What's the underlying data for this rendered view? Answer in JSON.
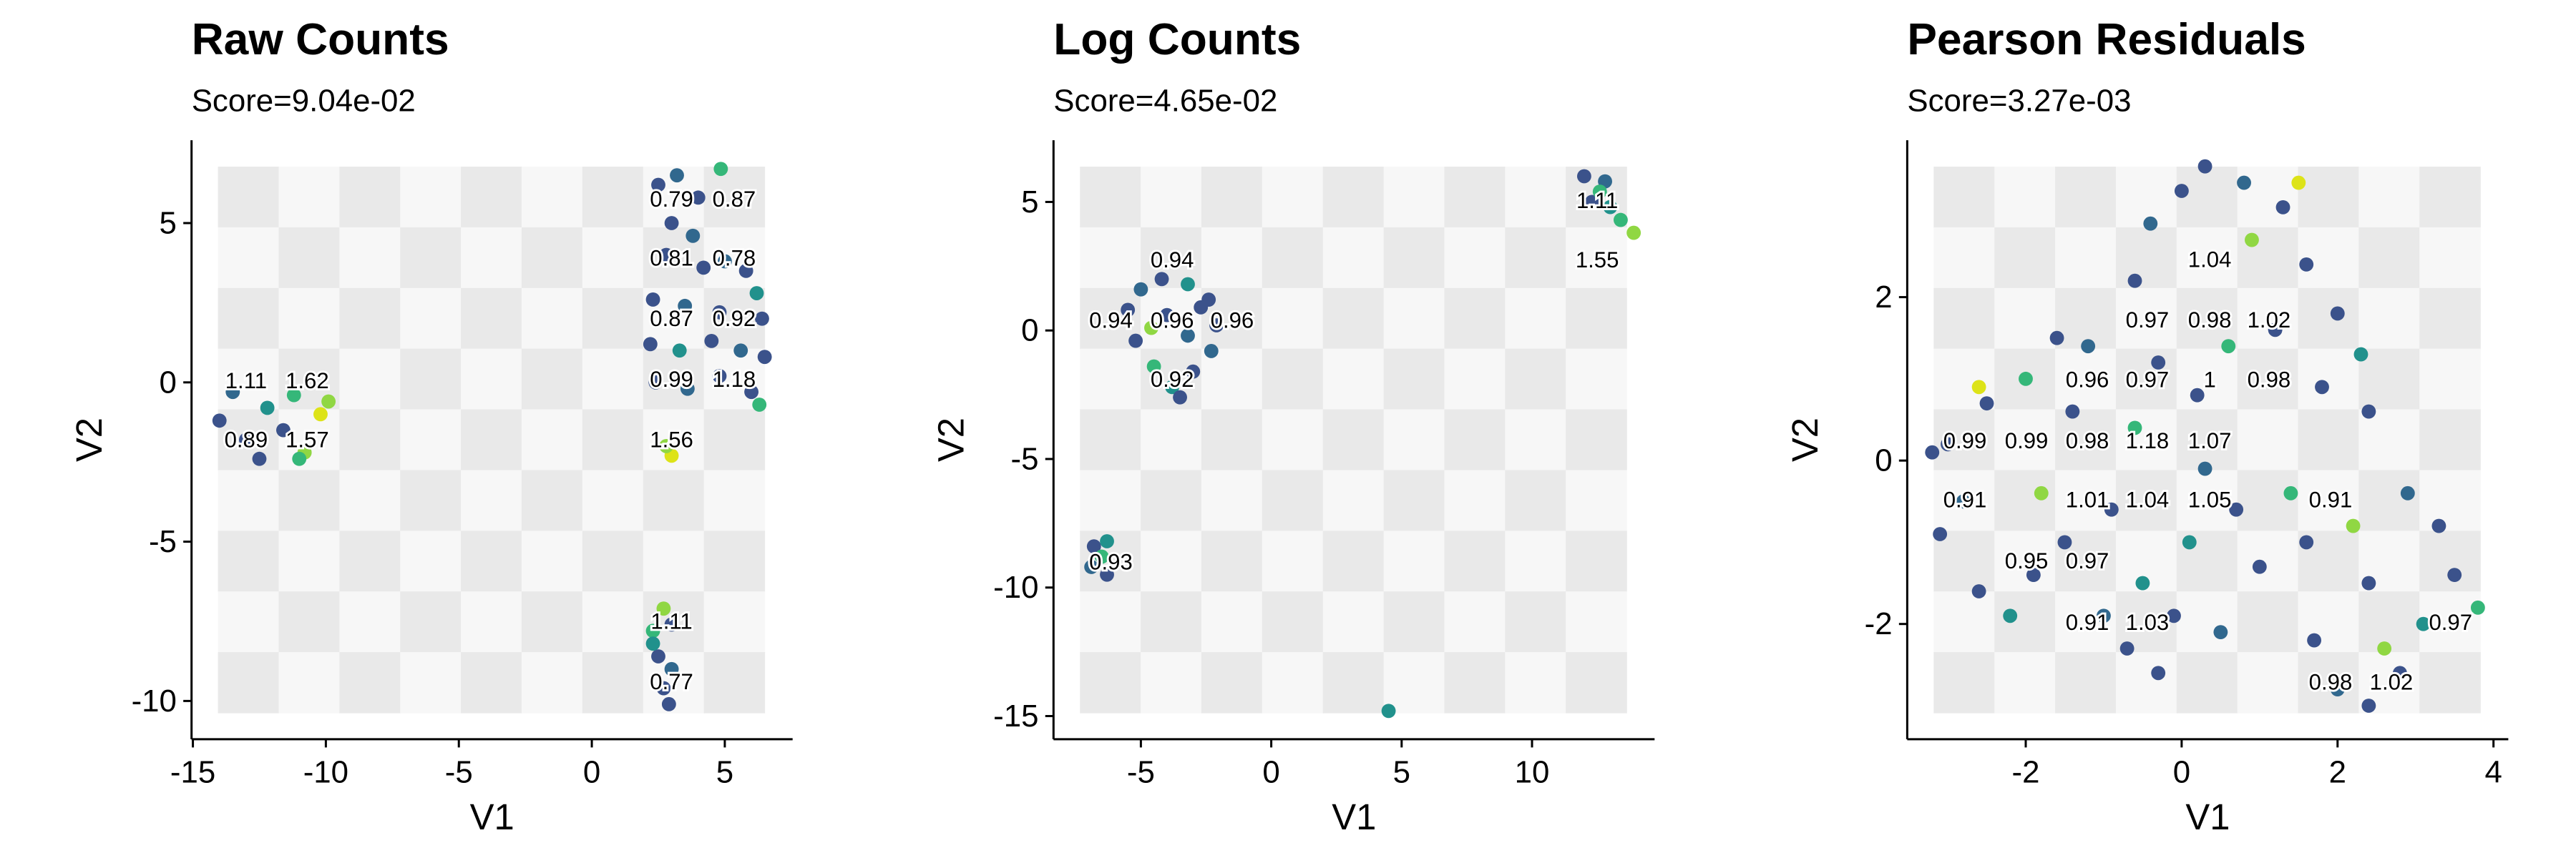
{
  "chart_data": [
    {
      "type": "scatter",
      "title": "Raw Counts",
      "subtitle": "Score=9.04e-02",
      "x_label": "V1",
      "y_label": "V2",
      "xlim": [
        -15.05,
        7.55
      ],
      "ylim": [
        -11.2,
        7.6
      ],
      "xticks": [
        -15,
        -10,
        -5,
        0,
        5
      ],
      "yticks": [
        -10,
        -5,
        0,
        5
      ],
      "x": [
        2.5,
        3.2,
        4.0,
        3.0,
        3.8,
        2.8,
        4.2,
        5.0,
        5.8,
        6.2,
        2.3,
        3.5,
        4.8,
        6.4,
        2.2,
        3.3,
        4.5,
        5.6,
        6.5,
        2.4,
        3.6,
        4.8,
        6.0,
        6.3,
        4.85,
        3.0,
        2.8,
        -14,
        -13.5,
        -13,
        -12.5,
        -12.2,
        -11.6,
        -11.2,
        -10.8,
        -10.2,
        -9.9,
        -11,
        2.3,
        2.7,
        3.0,
        2.5,
        3.0,
        2.7,
        2.9,
        2.3
      ],
      "y": [
        6.2,
        6.5,
        5.8,
        5.0,
        4.6,
        4.0,
        3.6,
        3.8,
        3.5,
        2.8,
        2.6,
        2.4,
        2.2,
        2.0,
        1.2,
        1.0,
        1.3,
        1.0,
        0.8,
        0.0,
        -0.2,
        0.2,
        -0.3,
        -0.7,
        6.7,
        -2.3,
        -2.0,
        -1.2,
        -0.3,
        -1.8,
        -2.4,
        -0.8,
        -1.5,
        -0.4,
        -2.2,
        -1.0,
        -0.6,
        -2.4,
        -7.8,
        -7.1,
        -7.6,
        -8.6,
        -9.0,
        -9.6,
        -10.1,
        -8.2
      ],
      "colors": [
        "#3b528b",
        "#31688e",
        "#3b528b",
        "#3b528b",
        "#31688e",
        "#3b528b",
        "#3b528b",
        "#31688e",
        "#3b528b",
        "#21918c",
        "#3b528b",
        "#31688e",
        "#3b528b",
        "#3b528b",
        "#3b528b",
        "#21918c",
        "#3b528b",
        "#31688e",
        "#3b528b",
        "#3b528b",
        "#31688e",
        "#3b528b",
        "#3b528b",
        "#35b779",
        "#35b779",
        "#dde318",
        "#90d743",
        "#3b528b",
        "#31688e",
        "#3b528b",
        "#3b528b",
        "#21918c",
        "#3b528b",
        "#35b779",
        "#90d743",
        "#dde318",
        "#90d743",
        "#35b779",
        "#35b779",
        "#90d743",
        "#3b528b",
        "#3b528b",
        "#31688e",
        "#3b528b",
        "#3b528b",
        "#21918c"
      ],
      "annotations": [
        {
          "text": "0.79",
          "x": 3.0,
          "y": 5.75
        },
        {
          "text": "0.87",
          "x": 5.35,
          "y": 5.75
        },
        {
          "text": "0.81",
          "x": 3.0,
          "y": 3.9
        },
        {
          "text": "0.78",
          "x": 5.35,
          "y": 3.9
        },
        {
          "text": "0.87",
          "x": 3.0,
          "y": 2.0
        },
        {
          "text": "0.92",
          "x": 5.35,
          "y": 2.0
        },
        {
          "text": "0.99",
          "x": 3.0,
          "y": 0.1
        },
        {
          "text": "1.18",
          "x": 5.35,
          "y": 0.1
        },
        {
          "text": "1.11",
          "x": -13.0,
          "y": 0.05
        },
        {
          "text": "1.62",
          "x": -10.7,
          "y": 0.05
        },
        {
          "text": "0.89",
          "x": -13.0,
          "y": -1.8
        },
        {
          "text": "1.57",
          "x": -10.7,
          "y": -1.8
        },
        {
          "text": "1.56",
          "x": 3.0,
          "y": -1.8
        },
        {
          "text": "1.11",
          "x": 3.0,
          "y": -7.5
        },
        {
          "text": "0.77",
          "x": 3.0,
          "y": -9.4
        }
      ]
    },
    {
      "type": "scatter",
      "title": "Log Counts",
      "subtitle": "Score=4.65e-02",
      "x_label": "V1",
      "y_label": "V2",
      "xlim": [
        -8.35,
        14.7
      ],
      "ylim": [
        -15.9,
        7.4
      ],
      "xticks": [
        -5,
        0,
        5,
        10
      ],
      "yticks": [
        -15,
        -10,
        -5,
        0,
        5
      ],
      "x": [
        -5.5,
        -5,
        -4.2,
        -3.2,
        -2.4,
        -2.1,
        -2.3,
        -3.0,
        -3.8,
        -4.5,
        -5.2,
        -4.0,
        -3.2,
        -4.6,
        -3.5,
        -2.7,
        -6.8,
        -6.3,
        -6.9,
        -6.3,
        -6.5,
        12.0,
        12.8,
        12.3,
        13.0,
        13.4,
        13.9,
        12.6,
        4.5
      ],
      "y": [
        0.8,
        1.6,
        2.0,
        1.8,
        1.2,
        0.2,
        -0.8,
        -1.6,
        -2.2,
        -1.4,
        -0.4,
        0.6,
        -0.2,
        0.1,
        -2.6,
        0.9,
        -8.4,
        -8.2,
        -9.2,
        -9.5,
        -8.8,
        6.0,
        5.8,
        5.0,
        4.8,
        4.3,
        3.8,
        5.4,
        -14.8
      ],
      "colors": [
        "#3b528b",
        "#31688e",
        "#3b528b",
        "#21918c",
        "#3b528b",
        "#3b528b",
        "#31688e",
        "#3b528b",
        "#21918c",
        "#35b779",
        "#3b528b",
        "#3b528b",
        "#31688e",
        "#90d743",
        "#3b528b",
        "#3b528b",
        "#3b528b",
        "#21918c",
        "#31688e",
        "#3b528b",
        "#35b779",
        "#3b528b",
        "#31688e",
        "#3b528b",
        "#21918c",
        "#35b779",
        "#90d743",
        "#35b779",
        "#21918c"
      ],
      "annotations": [
        {
          "text": "1.11",
          "x": 12.5,
          "y": 5.05
        },
        {
          "text": "1.55",
          "x": 12.5,
          "y": 2.75
        },
        {
          "text": "0.94",
          "x": -3.8,
          "y": 2.75
        },
        {
          "text": "0.94",
          "x": -6.15,
          "y": 0.4
        },
        {
          "text": "0.96",
          "x": -3.8,
          "y": 0.4
        },
        {
          "text": "0.96",
          "x": -1.5,
          "y": 0.4
        },
        {
          "text": "0.92",
          "x": -3.8,
          "y": -1.9
        },
        {
          "text": "0.93",
          "x": -6.15,
          "y": -9.0
        }
      ]
    },
    {
      "type": "scatter",
      "title": "Pearson Residuals",
      "subtitle": "Score=3.27e-03",
      "x_label": "V1",
      "y_label": "V2",
      "xlim": [
        -3.52,
        4.19
      ],
      "ylim": [
        -3.41,
        3.92
      ],
      "xticks": [
        -2,
        0,
        2,
        4
      ],
      "yticks": [
        -2,
        0,
        2
      ],
      "x": [
        -3.0,
        -2.8,
        -3.1,
        -2.6,
        -2.2,
        -2.5,
        -2.0,
        -1.6,
        -1.2,
        -1.4,
        -1.8,
        -1.5,
        -1.9,
        -1.0,
        -0.7,
        -0.3,
        -0.5,
        -0.9,
        -0.6,
        -0.3,
        -0.6,
        -0.4,
        0.0,
        0.3,
        0.8,
        1.3,
        0.9,
        1.6,
        2.0,
        2.3,
        2.4,
        1.8,
        1.2,
        0.6,
        0.2,
        0.3,
        0.7,
        0.1,
        -0.1,
        0.5,
        1.0,
        1.4,
        1.6,
        1.7,
        2.0,
        2.4,
        2.8,
        3.1,
        3.5,
        3.8,
        3.3,
        2.9,
        2.4,
        2.2,
        1.5,
        -2.6,
        -3.2,
        2.6
      ],
      "y": [
        0.2,
        -0.5,
        -0.9,
        -1.6,
        -1.9,
        0.7,
        1.0,
        1.5,
        1.4,
        0.6,
        -0.4,
        -1.0,
        -1.4,
        -1.9,
        -2.3,
        -2.6,
        -1.5,
        -0.6,
        0.4,
        1.2,
        2.2,
        2.9,
        3.3,
        3.6,
        3.4,
        3.1,
        2.7,
        2.4,
        1.8,
        1.3,
        0.6,
        0.9,
        1.6,
        1.4,
        0.8,
        -0.1,
        -0.6,
        -1.0,
        -1.9,
        -2.1,
        -1.3,
        -0.4,
        -1.0,
        -2.2,
        -2.8,
        -3.0,
        -2.6,
        -2.0,
        -1.4,
        -1.8,
        -0.8,
        -0.4,
        -1.5,
        -0.8,
        3.4,
        0.9,
        0.1,
        -2.3
      ],
      "colors": [
        "#3b528b",
        "#31688e",
        "#3b528b",
        "#3b528b",
        "#21918c",
        "#3b528b",
        "#35b779",
        "#3b528b",
        "#31688e",
        "#3b528b",
        "#90d743",
        "#3b528b",
        "#3b528b",
        "#31688e",
        "#3b528b",
        "#3b528b",
        "#21918c",
        "#3b528b",
        "#35b779",
        "#3b528b",
        "#3b528b",
        "#31688e",
        "#3b528b",
        "#3b528b",
        "#31688e",
        "#3b528b",
        "#90d743",
        "#3b528b",
        "#3b528b",
        "#21918c",
        "#3b528b",
        "#3b528b",
        "#3b528b",
        "#35b779",
        "#3b528b",
        "#31688e",
        "#3b528b",
        "#21918c",
        "#3b528b",
        "#31688e",
        "#3b528b",
        "#35b779",
        "#3b528b",
        "#3b528b",
        "#31688e",
        "#3b528b",
        "#3b528b",
        "#21918c",
        "#3b528b",
        "#35b779",
        "#3b528b",
        "#31688e",
        "#3b528b",
        "#90d743",
        "#dde318",
        "#dde318",
        "#3b528b",
        "#90d743"
      ],
      "annotations": [
        {
          "text": "1.04",
          "x": 0.36,
          "y": 2.46
        },
        {
          "text": "0.97",
          "x": -0.44,
          "y": 1.72
        },
        {
          "text": "0.98",
          "x": 0.36,
          "y": 1.72
        },
        {
          "text": "1.02",
          "x": 1.12,
          "y": 1.72
        },
        {
          "text": "0.96",
          "x": -1.21,
          "y": 0.99
        },
        {
          "text": "0.97",
          "x": -0.44,
          "y": 0.99
        },
        {
          "text": "1",
          "x": 0.36,
          "y": 0.99
        },
        {
          "text": "0.98",
          "x": 1.12,
          "y": 0.99
        },
        {
          "text": "0.99",
          "x": -2.78,
          "y": 0.24
        },
        {
          "text": "0.99",
          "x": -1.99,
          "y": 0.24
        },
        {
          "text": "0.98",
          "x": -1.21,
          "y": 0.24
        },
        {
          "text": "1.18",
          "x": -0.44,
          "y": 0.24
        },
        {
          "text": "1.07",
          "x": 0.36,
          "y": 0.24
        },
        {
          "text": "0.91",
          "x": -2.78,
          "y": -0.48
        },
        {
          "text": "1.01",
          "x": -1.21,
          "y": -0.48
        },
        {
          "text": "1.04",
          "x": -0.44,
          "y": -0.48
        },
        {
          "text": "1.05",
          "x": 0.36,
          "y": -0.48
        },
        {
          "text": "0.91",
          "x": 1.91,
          "y": -0.48
        },
        {
          "text": "0.95",
          "x": -1.99,
          "y": -1.23
        },
        {
          "text": "0.97",
          "x": -1.21,
          "y": -1.23
        },
        {
          "text": "0.91",
          "x": -1.21,
          "y": -1.98
        },
        {
          "text": "1.03",
          "x": -0.44,
          "y": -1.98
        },
        {
          "text": "0.97",
          "x": 3.45,
          "y": -1.98
        },
        {
          "text": "0.98",
          "x": 1.91,
          "y": -2.71
        },
        {
          "text": "1.02",
          "x": 2.69,
          "y": -2.71
        }
      ]
    }
  ]
}
